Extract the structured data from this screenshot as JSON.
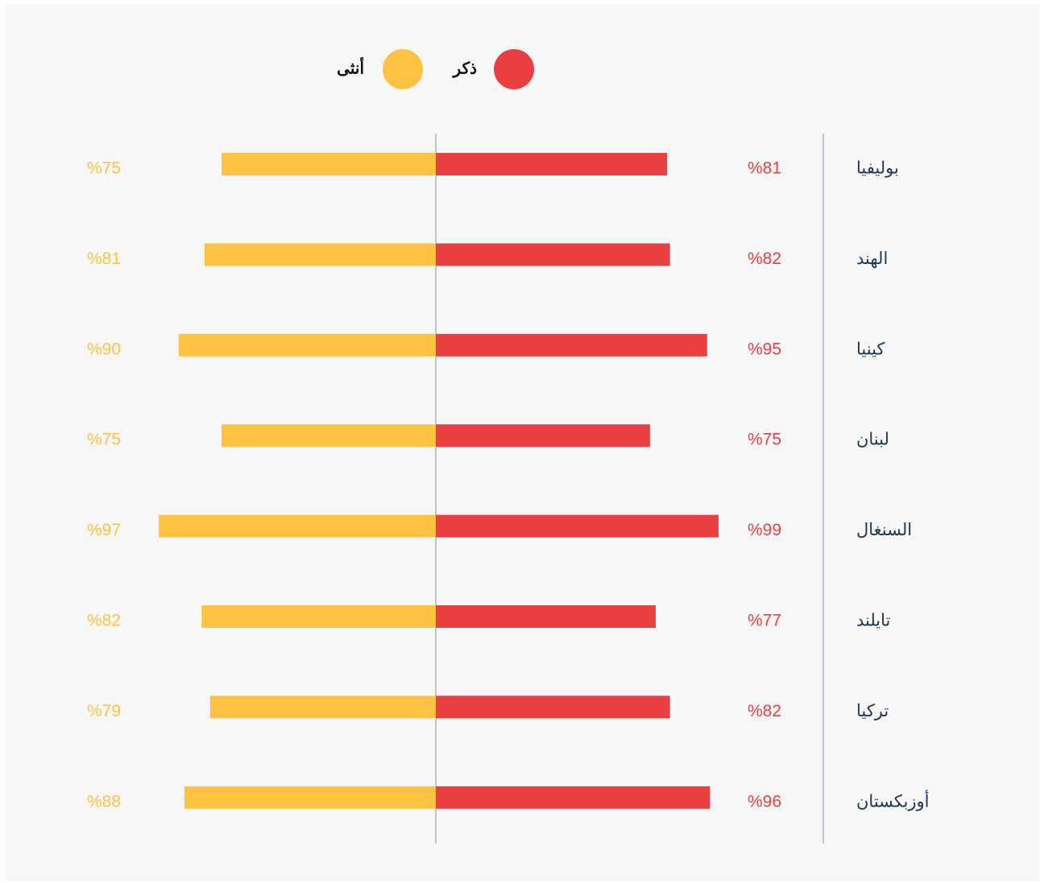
{
  "chart_data": {
    "type": "butterfly-bar",
    "categories": [
      "بوليفيا",
      "الهند",
      "كينيا",
      "لبنان",
      "السنغال",
      "تايلند",
      "تركيا",
      "أوزبكستان"
    ],
    "series": [
      {
        "name": "ذكر",
        "color": "#ea3f41",
        "values": [
          81,
          82,
          95,
          75,
          99,
          77,
          82,
          96
        ],
        "value_labels": [
          "%81",
          "%82",
          "%95",
          "%75",
          "%99",
          "%77",
          "%82",
          "%96"
        ]
      },
      {
        "name": "أنثى",
        "color": "#fdc241",
        "values": [
          75,
          81,
          90,
          75,
          97,
          82,
          79,
          88
        ],
        "value_labels": [
          "%75",
          "%81",
          "%90",
          "%75",
          "%97",
          "%82",
          "%79",
          "%88"
        ]
      }
    ]
  }
}
